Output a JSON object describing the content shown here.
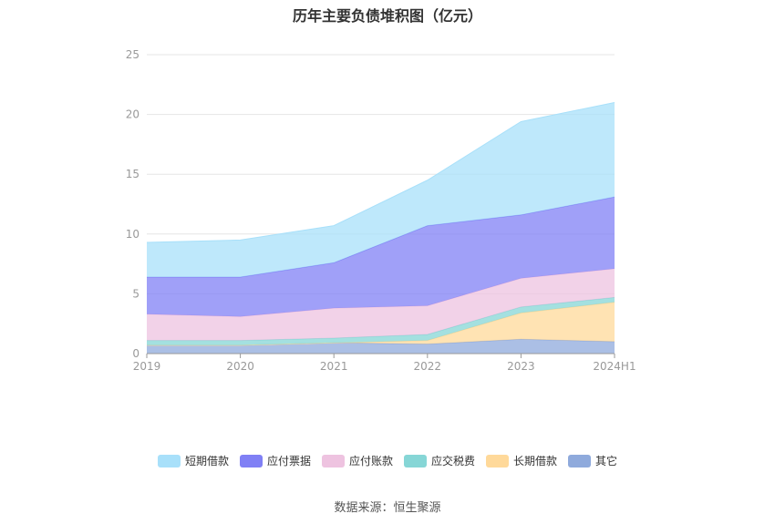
{
  "chart_data": {
    "type": "area",
    "stacked": true,
    "title": "历年主要负债堆积图（亿元）",
    "categories": [
      "2019",
      "2020",
      "2021",
      "2022",
      "2023",
      "2024H1"
    ],
    "ylim": [
      0,
      25
    ],
    "yticks": [
      0,
      5,
      10,
      15,
      20,
      25
    ],
    "grid": true,
    "legend_position": "bottom",
    "series": [
      {
        "name": "其它",
        "color": "#8faadc",
        "values": [
          0.7,
          0.7,
          0.9,
          0.8,
          1.2,
          1.0
        ]
      },
      {
        "name": "长期借款",
        "color": "#ffd99a",
        "values": [
          0.0,
          0.0,
          0.0,
          0.3,
          2.2,
          3.3
        ]
      },
      {
        "name": "应交税费",
        "color": "#86d6d6",
        "values": [
          0.4,
          0.4,
          0.4,
          0.5,
          0.5,
          0.4
        ]
      },
      {
        "name": "应付账款",
        "color": "#eec3e0",
        "values": [
          2.2,
          2.0,
          2.5,
          2.4,
          2.4,
          2.4
        ]
      },
      {
        "name": "应付票据",
        "color": "#8080f5",
        "values": [
          3.1,
          3.3,
          3.8,
          6.7,
          5.3,
          6.0
        ]
      },
      {
        "name": "短期借款",
        "color": "#a8e0fa",
        "values": [
          2.9,
          3.1,
          3.1,
          3.8,
          7.8,
          7.9
        ]
      }
    ]
  },
  "legend_order": [
    "短期借款",
    "应付票据",
    "应付账款",
    "应交税费",
    "长期借款",
    "其它"
  ],
  "footer": {
    "source": "数据来源：恒生聚源"
  }
}
